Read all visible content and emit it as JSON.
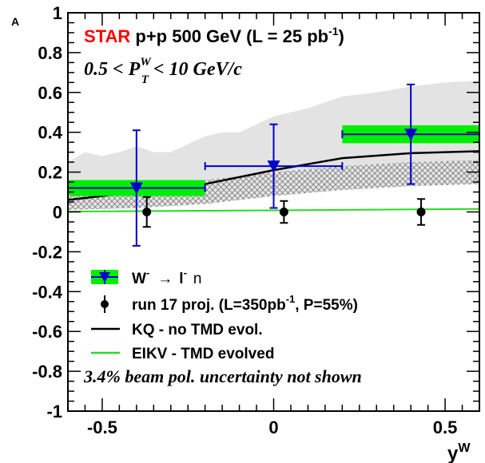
{
  "chart_data": {
    "type": "scatter",
    "xlabel": "y",
    "xlabel_sup": "W",
    "ylabel": "A",
    "xlim": [
      -0.6,
      0.6
    ],
    "ylim": [
      -1,
      1
    ],
    "x_ticks": [
      -0.5,
      0,
      0.5
    ],
    "x_tick_labels": [
      "-0.5",
      "0",
      "0.5"
    ],
    "y_ticks": [
      -1,
      -0.8,
      -0.6,
      -0.4,
      -0.2,
      0,
      0.2,
      0.4,
      0.6,
      0.8,
      1
    ],
    "y_tick_labels": [
      "-1",
      "-0.8",
      "-0.6",
      "-0.4",
      "-0.2",
      "0",
      "0.2",
      "0.4",
      "0.6",
      "0.8",
      "1"
    ],
    "header": {
      "star": "STAR",
      "energy": "p+p 500 GeV (L = 25 pb",
      "energy_sup": "-1",
      "energy_end": ")",
      "cut_lo": "0.5 < P",
      "cut_sup": "W",
      "cut_sub": "T",
      "cut_hi": "< 10 GeV/c"
    },
    "note": "3.4% beam pol. uncertainty not shown",
    "series": [
      {
        "name": "W- → l- n",
        "legend_parts": {
          "a": "W",
          "a_sup": "-",
          "arrow": "→",
          "b": "l",
          "b_sup": "-",
          "c": "n"
        },
        "color": "#0000cc",
        "syst_color": "#00ee00",
        "points": [
          {
            "x": -0.4,
            "xerr": 0.2,
            "y": 0.12,
            "yerr_lo": 0.29,
            "yerr_hi": 0.29,
            "syst": 0.04
          },
          {
            "x": 0.0,
            "xerr": 0.2,
            "y": 0.23,
            "yerr_lo": 0.21,
            "yerr_hi": 0.21,
            "syst": 0.0
          },
          {
            "x": 0.4,
            "xerr": 0.2,
            "y": 0.39,
            "yerr_lo": 0.25,
            "yerr_hi": 0.25,
            "syst": 0.045
          }
        ]
      },
      {
        "name": "run 17 proj. (L=350pb-1, P=55%)",
        "legend_parts": {
          "a": "run 17 proj. (L=350pb",
          "a_sup": "-1",
          "b": ", P=55%)"
        },
        "color": "#000000",
        "points": [
          {
            "x": -0.37,
            "y": 0.0,
            "yerr": 0.075
          },
          {
            "x": 0.03,
            "y": 0.0,
            "yerr": 0.055
          },
          {
            "x": 0.43,
            "y": 0.0,
            "yerr": 0.065
          }
        ]
      },
      {
        "name": "KQ - no TMD evol.",
        "color": "#000000",
        "curve": [
          [
            -0.6,
            0.06
          ],
          [
            -0.4,
            0.1
          ],
          [
            -0.2,
            0.14
          ],
          [
            0.0,
            0.21
          ],
          [
            0.2,
            0.27
          ],
          [
            0.4,
            0.295
          ],
          [
            0.6,
            0.305
          ]
        ],
        "band_upper": [
          [
            -0.6,
            0.25
          ],
          [
            -0.55,
            0.3
          ],
          [
            -0.5,
            0.28
          ],
          [
            -0.45,
            0.3
          ],
          [
            -0.4,
            0.33
          ],
          [
            -0.35,
            0.3
          ],
          [
            -0.3,
            0.3
          ],
          [
            -0.25,
            0.34
          ],
          [
            -0.2,
            0.38
          ],
          [
            -0.15,
            0.4
          ],
          [
            -0.1,
            0.4
          ],
          [
            -0.05,
            0.44
          ],
          [
            0.0,
            0.48
          ],
          [
            0.05,
            0.5
          ],
          [
            0.1,
            0.52
          ],
          [
            0.15,
            0.55
          ],
          [
            0.2,
            0.58
          ],
          [
            0.3,
            0.6
          ],
          [
            0.4,
            0.63
          ],
          [
            0.5,
            0.65
          ],
          [
            0.6,
            0.66
          ]
        ],
        "band_lower": [
          [
            -0.6,
            0.02
          ],
          [
            -0.5,
            0.02
          ],
          [
            -0.4,
            0.03
          ],
          [
            -0.3,
            0.04
          ],
          [
            -0.2,
            0.05
          ],
          [
            -0.1,
            0.06
          ],
          [
            0.0,
            0.08
          ],
          [
            0.1,
            0.1
          ],
          [
            0.2,
            0.12
          ],
          [
            0.3,
            0.14
          ],
          [
            0.4,
            0.15
          ],
          [
            0.5,
            0.155
          ],
          [
            0.6,
            0.16
          ]
        ],
        "hatch_upper": [
          [
            -0.6,
            0.1
          ],
          [
            -0.4,
            0.12
          ],
          [
            -0.2,
            0.16
          ],
          [
            0.0,
            0.2
          ],
          [
            0.2,
            0.23
          ],
          [
            0.4,
            0.25
          ],
          [
            0.6,
            0.26
          ]
        ],
        "hatch_lower": [
          [
            -0.6,
            0.01
          ],
          [
            -0.4,
            0.02
          ],
          [
            -0.2,
            0.04
          ],
          [
            0.0,
            0.08
          ],
          [
            0.2,
            0.11
          ],
          [
            0.4,
            0.13
          ],
          [
            0.6,
            0.14
          ]
        ]
      },
      {
        "name": "EIKV - TMD evolved",
        "color": "#22dd22",
        "curve": [
          [
            -0.6,
            0.002
          ],
          [
            0.0,
            0.008
          ],
          [
            0.6,
            0.015
          ]
        ]
      }
    ],
    "grid": false
  }
}
